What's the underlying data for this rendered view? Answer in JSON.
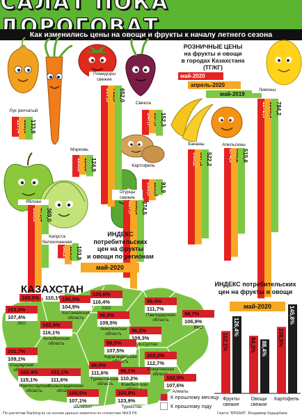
{
  "title": "САЛАТ ПОКА ДОРОГОВАТ",
  "subtitle": "Как изменились цены на овощи и фрукты к началу летнего сезона",
  "legend": {
    "title_lines": [
      "РОЗНИЧНЫЕ ЦЕНЫ",
      "на фрукты и овощи",
      "в городах Казахстана",
      "(ТГ/КГ)"
    ],
    "may_2020": "май-2020",
    "april_2020": "апрель-2020",
    "may_2019": "май-2019"
  },
  "colors": {
    "may_2020": "#e52320",
    "april_2020": "#f7a824",
    "may_2019": "#7ec943",
    "title_green": "#5cb531",
    "map_green": "#7cc242",
    "map_red": "#d71f26"
  },
  "chart_data": [
    {
      "type": "bar",
      "title": "РОЗНИЧНЫЕ ЦЕНЫ на фрукты и овощи в городах Казахстана (ТГ/КГ)",
      "series_names": [
        "май-2020",
        "апрель-2020",
        "май-2019"
      ],
      "products": [
        {
          "name": "Лук репчатый",
          "values": [
            117.4,
            133.5,
            133.9
          ]
        },
        {
          "name": "Морковь",
          "values": [
            128.8,
            115.3,
            124.9
          ]
        },
        {
          "name": "Помидоры свежие",
          "values": [
            697.3,
            711.5,
            652.0
          ]
        },
        {
          "name": "Свекла",
          "values": [
            147.7,
            137.9,
            152.3
          ]
        },
        {
          "name": "Картофель",
          "values": [
            133.9,
            123.0,
            91.9
          ]
        },
        {
          "name": "Огурцы свежие",
          "values": [
            467.7,
            538.6,
            374.5
          ]
        },
        {
          "name": "Яблоки",
          "values": [
            515.5,
            479.4,
            369.0
          ]
        },
        {
          "name": "Капуста белокочанная",
          "values": [
            88.1,
            123.5,
            103.9
          ]
        },
        {
          "name": "Бананы",
          "values": [
            558.2,
            557.1,
            522.2
          ]
        },
        {
          "name": "Апельсины",
          "values": [
            674.0,
            651.2,
            515.6
          ]
        },
        {
          "name": "Лимоны",
          "values": [
            1172.9,
            1165.1,
            784.2
          ]
        }
      ]
    },
    {
      "type": "bar",
      "title": "ИНДЕКС потребительских цен на фрукты и овощи",
      "period": "май-2020",
      "categories": [
        "Фрукты свежие",
        "Овощи свежие",
        "Картофель"
      ],
      "series": [
        {
          "name": "К прошлому месяцу",
          "values": [
            102.1,
            94.3,
            108.9
          ]
        },
        {
          "name": "К прошлому году",
          "values": [
            126.4,
            88.4,
            145.8
          ]
        }
      ]
    }
  ],
  "regional_index": {
    "heading_lines": [
      "ИНДЕКС",
      "потребительских",
      "цен на фрукты",
      "и овощи по регионам"
    ],
    "period": "май-2020",
    "country": "КАЗАХСТАН",
    "country_values": {
      "month": "100,5%",
      "year": "110,1%"
    },
    "regions": [
      {
        "name": "ЗКО",
        "month": "103,3%",
        "year": "107,4%"
      },
      {
        "name": "Актюбинская область",
        "month": "102,4%",
        "year": "116,1%"
      },
      {
        "name": "Атырауская область",
        "month": "101,7%",
        "year": "109,1%"
      },
      {
        "name": "Мангистауская область",
        "month": "102,4%",
        "year": "115,1%"
      },
      {
        "name": "Костанайская область",
        "month": "100,0%",
        "year": "104,9%"
      },
      {
        "name": "СКО",
        "month": "105,6%",
        "year": "116,4%"
      },
      {
        "name": "Акмолинская область",
        "month": "96,5%",
        "year": "109,5%"
      },
      {
        "name": "Нур-Султан",
        "month": "96,2%",
        "year": "109,3%"
      },
      {
        "name": "Павлодарская область",
        "month": "99,4%",
        "year": "111,7%"
      },
      {
        "name": "ВКО",
        "month": "98,7%",
        "year": "106,9%"
      },
      {
        "name": "Карагандинская область",
        "month": "99,0%",
        "year": "107,5%"
      },
      {
        "name": "Кызылординская область",
        "month": "101,1%",
        "year": "111,6%"
      },
      {
        "name": "Туркестанская область",
        "month": "98,0%",
        "year": "111,6%"
      },
      {
        "name": "Жамбылская область",
        "month": "98,1%",
        "year": "110,2%"
      },
      {
        "name": "Алматинская область",
        "month": "103,2%",
        "year": "112,7%"
      },
      {
        "name": "Алматы",
        "month": "102,5%",
        "year": "107,6%"
      },
      {
        "name": "Шымкент",
        "month": "100,5%",
        "year": "107,1%"
      },
      {
        "name": "Туркестан",
        "month": "100,8%",
        "year": "123,9%"
      }
    ],
    "legend_month": "К прошлому месяцу",
    "legend_year": "К прошлому году"
  },
  "footer": {
    "source": "По расчётам Ranking.kz на основе данных комитета по статистике МНЭ РК",
    "credit": "Газета \"ВРЕМЯ\". Владимир Кадырбаев"
  }
}
